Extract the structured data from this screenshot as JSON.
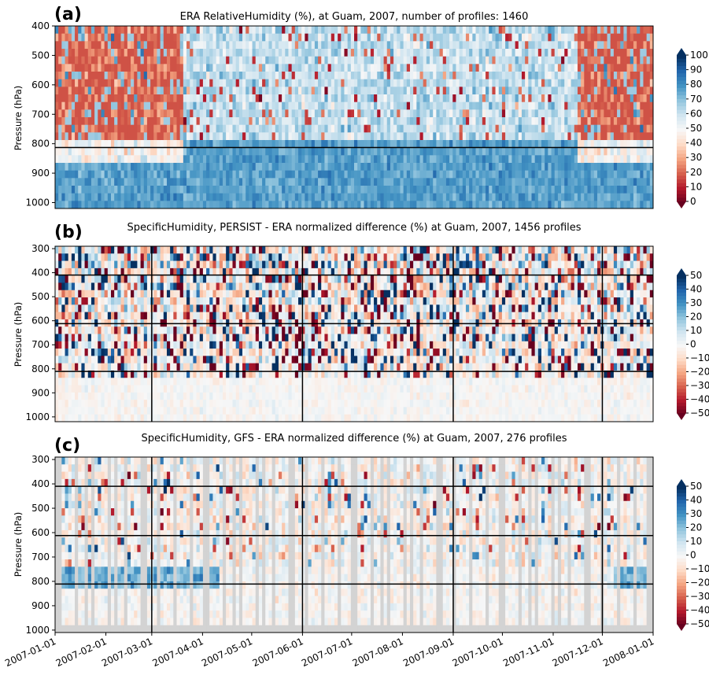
{
  "chart_data": [
    {
      "panel": "(a)",
      "type": "heatmap",
      "title": "ERA RelativeHumidity (%), at Guam, 2007, number of profiles: 1460",
      "ylabel": "Pressure (hPa)",
      "ylim": [
        1020,
        400
      ],
      "yticks": [
        "400",
        "500",
        "600",
        "700",
        "800",
        "900",
        "1000"
      ],
      "colorbar": {
        "min": 0,
        "max": 100,
        "ticks": [
          "100",
          "90",
          "80",
          "70",
          "60",
          "50",
          "40",
          "30",
          "20",
          "10",
          "0"
        ],
        "cmap": "RdBu"
      },
      "hlines": [
        813
      ],
      "vlines": [],
      "description_values": {
        "upper_layer_dry_periods": [
          "2007-01-01 to 2007-03-20",
          "2007-11-15 to 2007-12-31"
        ],
        "lower_layer_typical_rh": 85
      }
    },
    {
      "panel": "(b)",
      "type": "heatmap",
      "title": "SpecificHumidity, PERSIST - ERA normalized difference (%) at Guam, 2007, 1456 profiles",
      "ylabel": "Pressure (hPa)",
      "ylim": [
        1020,
        290
      ],
      "yticks": [
        "300",
        "400",
        "500",
        "600",
        "700",
        "800",
        "900",
        "1000"
      ],
      "colorbar": {
        "min": -50,
        "max": 50,
        "ticks": [
          "50",
          "40",
          "30",
          "20",
          "10",
          "0",
          "−10",
          "−20",
          "−30",
          "−40",
          "−50"
        ],
        "cmap": "RdBu"
      },
      "hlines": [
        410,
        612,
        811
      ],
      "vlines": [
        "2007-03-01",
        "2007-06-01",
        "2007-09-01",
        "2007-12-01"
      ]
    },
    {
      "panel": "(c)",
      "type": "heatmap",
      "title": "SpecificHumidity, GFS - ERA normalized difference (%) at Guam, 2007, 276 profiles",
      "ylabel": "Pressure (hPa)",
      "ylim": [
        1010,
        290
      ],
      "yticks": [
        "300",
        "400",
        "500",
        "600",
        "700",
        "800",
        "900",
        "1000"
      ],
      "colorbar": {
        "min": -50,
        "max": 50,
        "ticks": [
          "50",
          "40",
          "30",
          "20",
          "10",
          "0",
          "−10",
          "−20",
          "−30",
          "−40",
          "−50"
        ],
        "cmap": "RdBu"
      },
      "hlines": [
        410,
        612,
        811
      ],
      "vlines": [
        "2007-03-01",
        "2007-06-01",
        "2007-09-01",
        "2007-12-01"
      ],
      "missing_color": "#d3d3d3"
    }
  ],
  "xticks": [
    "2007-01-01",
    "2007-02-01",
    "2007-03-01",
    "2007-04-01",
    "2007-05-01",
    "2007-06-01",
    "2007-07-01",
    "2007-08-01",
    "2007-09-01",
    "2007-10-01",
    "2007-11-01",
    "2007-12-01",
    "2008-01-01"
  ],
  "colors": {
    "dark_red": "#67001f",
    "red": "#b2182b",
    "light": "#f7f7f7",
    "blue": "#2166ac",
    "dark_blue": "#053061"
  }
}
